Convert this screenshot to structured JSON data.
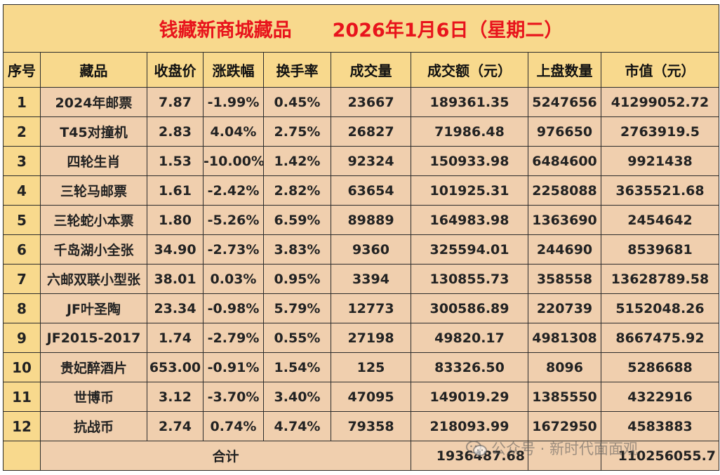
{
  "title": {
    "name": "钱藏新商城藏品",
    "date": "2026年1月6日（星期二）"
  },
  "columns": [
    "序号",
    "藏品",
    "收盘价",
    "涨跌幅",
    "换手率",
    "成交量",
    "成交额（元）",
    "上盘数量",
    "市值（元）"
  ],
  "rows": [
    {
      "index": "1",
      "name": "2024年邮票",
      "close": "7.87",
      "change": "-1.99%",
      "trend": "down",
      "turnover_rate": "0.45%",
      "volume": "23667",
      "turnover": "189361.35",
      "listed": "5247656",
      "market_value": "41299052.72"
    },
    {
      "index": "2",
      "name": "T45对撞机",
      "close": "2.83",
      "change": "4.04%",
      "trend": "up",
      "turnover_rate": "2.75%",
      "volume": "26827",
      "turnover": "71986.48",
      "listed": "976650",
      "market_value": "2763919.5"
    },
    {
      "index": "3",
      "name": "四轮生肖",
      "close": "1.53",
      "change": "-10.00%",
      "trend": "down",
      "turnover_rate": "1.42%",
      "volume": "92324",
      "turnover": "150933.98",
      "listed": "6484600",
      "market_value": "9921438"
    },
    {
      "index": "4",
      "name": "三轮马邮票",
      "close": "1.61",
      "change": "-2.42%",
      "trend": "down",
      "turnover_rate": "2.82%",
      "volume": "63654",
      "turnover": "101925.31",
      "listed": "2258088",
      "market_value": "3635521.68"
    },
    {
      "index": "5",
      "name": "三轮蛇小本票",
      "close": "1.80",
      "change": "-5.26%",
      "trend": "down",
      "turnover_rate": "6.59%",
      "volume": "89889",
      "turnover": "164983.98",
      "listed": "1363690",
      "market_value": "2454642"
    },
    {
      "index": "6",
      "name": "千岛湖小全张",
      "close": "34.90",
      "change": "-2.73%",
      "trend": "down",
      "turnover_rate": "3.83%",
      "volume": "9360",
      "turnover": "325594.01",
      "listed": "244690",
      "market_value": "8539681"
    },
    {
      "index": "7",
      "name": "六邮双联小型张",
      "close": "38.01",
      "change": "0.03%",
      "trend": "up",
      "turnover_rate": "0.95%",
      "volume": "3394",
      "turnover": "130855.73",
      "listed": "358558",
      "market_value": "13628789.58"
    },
    {
      "index": "8",
      "name": "JF叶圣陶",
      "close": "23.34",
      "change": "-0.98%",
      "trend": "down",
      "turnover_rate": "5.79%",
      "volume": "12773",
      "turnover": "300586.89",
      "listed": "220739",
      "market_value": "5152048.26"
    },
    {
      "index": "9",
      "name": "JF2015-2017",
      "close": "1.74",
      "change": "-2.79%",
      "trend": "down",
      "turnover_rate": "0.55%",
      "volume": "27198",
      "turnover": "49820.17",
      "listed": "4981308",
      "market_value": "8667475.92"
    },
    {
      "index": "10",
      "name": "贵妃醉酒片",
      "close": "653.00",
      "change": "-0.91%",
      "trend": "down",
      "turnover_rate": "1.54%",
      "volume": "125",
      "turnover": "83326.50",
      "listed": "8096",
      "market_value": "5286688"
    },
    {
      "index": "11",
      "name": "世博币",
      "close": "3.12",
      "change": "-3.70%",
      "trend": "down",
      "turnover_rate": "3.40%",
      "volume": "47095",
      "turnover": "149019.29",
      "listed": "1385550",
      "market_value": "4322916"
    },
    {
      "index": "12",
      "name": "抗战币",
      "close": "2.74",
      "change": "0.74%",
      "trend": "up",
      "turnover_rate": "4.74%",
      "volume": "79358",
      "turnover": "218093.99",
      "listed": "1672950",
      "market_value": "4583883"
    }
  ],
  "total": {
    "label": "合计",
    "turnover": "1936487.68",
    "market_value": "110256055.7"
  },
  "watermark": {
    "icon": "wechat-icon",
    "text": "公众号 · 新时代面面观"
  },
  "colors": {
    "title_text": "#e8141c",
    "header_bg": "#f8d98d",
    "cell_bg": "#f0cfae",
    "up": "#e01818",
    "down": "#1ea446"
  }
}
